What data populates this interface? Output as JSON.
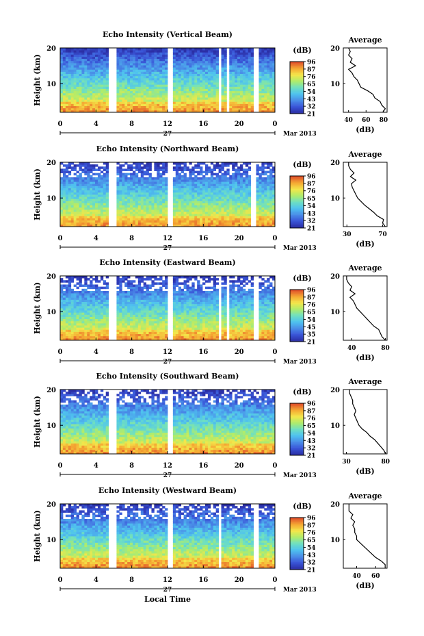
{
  "shared": {
    "time_ticks": [
      "0",
      "4",
      "8",
      "12",
      "16",
      "20",
      "0"
    ],
    "time_values": [
      0,
      4,
      8,
      12,
      16,
      20,
      24
    ],
    "date_day": "27",
    "date_month": "Mar 2013",
    "xlabel": "Local Time",
    "ylabel": "Height (km)",
    "height_ticks": [
      "10",
      "20"
    ],
    "height_values": [
      10,
      20
    ],
    "cbar_unit": "(dB)",
    "avg_title": "Average",
    "avg_xlabel": "(dB)",
    "colormap": [
      "#2b2fa6",
      "#3a56d8",
      "#4a8fe8",
      "#4fc3ef",
      "#6fe0c0",
      "#b0ec6a",
      "#f4e64a",
      "#f5a833",
      "#e0502a"
    ]
  },
  "chart_data": [
    {
      "type": "heatmap",
      "title": "Echo Intensity (Vertical Beam)",
      "xlim": [
        0,
        24
      ],
      "ylim": [
        2,
        20
      ],
      "cbar_ticks": [
        "96",
        "87",
        "76",
        "65",
        "54",
        "43",
        "32",
        "21"
      ],
      "data_gaps_hours": [
        [
          5.4,
          6.2
        ],
        [
          11.9,
          12.6
        ],
        [
          17.6,
          18.0
        ],
        [
          18.5,
          19.0
        ],
        [
          21.6,
          22.1
        ]
      ],
      "profile": {
        "title": "Average",
        "xticks": [
          "40",
          "60",
          "80"
        ],
        "xlim": [
          34,
          84
        ],
        "heights_km": [
          2,
          3,
          4,
          5,
          6,
          7,
          8,
          9,
          10,
          11,
          12,
          13,
          14,
          15,
          16,
          17,
          18,
          19,
          20
        ],
        "values_db": [
          79,
          82,
          78,
          76,
          70,
          68,
          62,
          54,
          52,
          50,
          46,
          44,
          40,
          48,
          42,
          44,
          40,
          42,
          40
        ]
      }
    },
    {
      "type": "heatmap",
      "title": "Echo Intensity (Northward Beam)",
      "xlim": [
        0,
        24
      ],
      "ylim": [
        2,
        20
      ],
      "cbar_ticks": [
        "96",
        "87",
        "76",
        "65",
        "54",
        "43",
        "32",
        "21"
      ],
      "data_gaps_hours": [
        [
          5.4,
          6.2
        ],
        [
          11.9,
          12.6
        ],
        [
          21.2,
          21.8
        ]
      ],
      "profile": {
        "title": "Average",
        "xticks": [
          "30",
          "70"
        ],
        "xlim": [
          26,
          75
        ],
        "heights_km": [
          2,
          3,
          4,
          5,
          6,
          7,
          8,
          9,
          10,
          11,
          12,
          13,
          14,
          15,
          16,
          17,
          18,
          19,
          20
        ],
        "values_db": [
          73,
          70,
          71,
          64,
          60,
          55,
          50,
          46,
          42,
          40,
          38,
          36,
          35,
          40,
          34,
          38,
          34,
          32,
          32
        ]
      }
    },
    {
      "type": "heatmap",
      "title": "Echo Intensity (Eastward Beam)",
      "xlim": [
        0,
        24
      ],
      "ylim": [
        2,
        20
      ],
      "cbar_ticks": [
        "96",
        "87",
        "76",
        "65",
        "54",
        "45",
        "35",
        "21"
      ],
      "data_gaps_hours": [
        [
          5.4,
          6.2
        ],
        [
          11.9,
          12.6
        ],
        [
          17.6,
          18.0
        ],
        [
          18.5,
          18.9
        ],
        [
          21.6,
          22.1
        ]
      ],
      "profile": {
        "title": "Average",
        "xticks": [
          "40",
          "80"
        ],
        "xlim": [
          30,
          82
        ],
        "heights_km": [
          2,
          3,
          4,
          5,
          6,
          7,
          8,
          9,
          10,
          11,
          12,
          13,
          14,
          15,
          16,
          17,
          18,
          19,
          20
        ],
        "values_db": [
          80,
          76,
          74,
          72,
          66,
          62,
          58,
          54,
          50,
          46,
          44,
          42,
          38,
          44,
          38,
          40,
          36,
          34,
          34
        ]
      }
    },
    {
      "type": "heatmap",
      "title": "Echo Intensity (Southward Beam)",
      "xlim": [
        0,
        24
      ],
      "ylim": [
        2,
        20
      ],
      "cbar_ticks": [
        "96",
        "87",
        "76",
        "65",
        "54",
        "43",
        "32",
        "21"
      ],
      "data_gaps_hours": [
        [
          5.4,
          6.2
        ],
        [
          11.9,
          12.6
        ]
      ],
      "profile": {
        "title": "Average",
        "xticks": [
          "30",
          "80"
        ],
        "xlim": [
          26,
          82
        ],
        "heights_km": [
          2,
          3,
          4,
          5,
          6,
          7,
          8,
          9,
          10,
          11,
          12,
          13,
          14,
          15,
          16,
          17,
          18,
          19,
          20
        ],
        "values_db": [
          80,
          78,
          74,
          70,
          66,
          60,
          56,
          50,
          46,
          44,
          42,
          40,
          42,
          40,
          38,
          38,
          36,
          34,
          34
        ]
      }
    },
    {
      "type": "heatmap",
      "title": "Echo Intensity (Westward Beam)",
      "xlim": [
        0,
        24
      ],
      "ylim": [
        2,
        20
      ],
      "cbar_ticks": [
        "96",
        "87",
        "76",
        "65",
        "54",
        "43",
        "32",
        "21"
      ],
      "data_gaps_hours": [
        [
          5.4,
          6.2
        ],
        [
          11.9,
          12.6
        ],
        [
          17.6,
          18.0
        ],
        [
          21.6,
          22.1
        ]
      ],
      "profile": {
        "title": "Average",
        "xticks": [
          "40",
          "60"
        ],
        "xlim": [
          26,
          72
        ],
        "heights_km": [
          2,
          3,
          4,
          5,
          6,
          7,
          8,
          9,
          10,
          11,
          12,
          13,
          14,
          15,
          16,
          17,
          18,
          19,
          20
        ],
        "values_db": [
          70,
          70,
          66,
          60,
          56,
          52,
          48,
          44,
          40,
          40,
          38,
          38,
          36,
          38,
          34,
          36,
          32,
          32,
          32
        ]
      }
    }
  ]
}
